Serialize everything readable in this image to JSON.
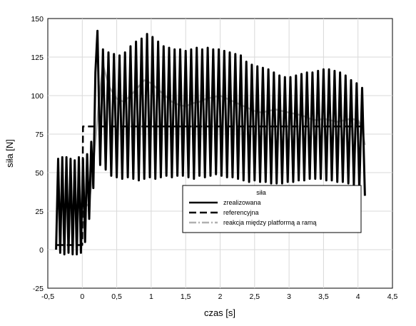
{
  "chart_data": {
    "type": "line",
    "title": "",
    "xlabel": "czas [s]",
    "ylabel": "siła [N]",
    "xlim": [
      -0.5,
      4.5
    ],
    "ylim": [
      -25,
      150
    ],
    "xticks": [
      "-0,5",
      "0",
      "0,5",
      "1",
      "1,5",
      "2",
      "2,5",
      "3",
      "3,5",
      "4",
      "4,5"
    ],
    "yticks": [
      "-25",
      "0",
      "25",
      "50",
      "75",
      "100",
      "125",
      "150"
    ],
    "grid": true,
    "legend": {
      "title": "siła",
      "placement": "center-right"
    },
    "series": [
      {
        "name": "zrealizowana",
        "color": "#000000",
        "style": "solid",
        "x": [
          -0.38,
          -0.35,
          -0.32,
          -0.29,
          -0.26,
          -0.23,
          -0.2,
          -0.17,
          -0.14,
          -0.11,
          -0.08,
          -0.05,
          -0.02,
          0.01,
          0.04,
          0.07,
          0.1,
          0.13,
          0.16,
          0.19,
          0.22,
          0.26,
          0.3,
          0.34,
          0.38,
          0.42,
          0.46,
          0.5,
          0.54,
          0.58,
          0.62,
          0.66,
          0.7,
          0.74,
          0.78,
          0.82,
          0.86,
          0.9,
          0.94,
          0.98,
          1.02,
          1.06,
          1.1,
          1.14,
          1.18,
          1.22,
          1.26,
          1.3,
          1.34,
          1.38,
          1.42,
          1.46,
          1.5,
          1.54,
          1.58,
          1.62,
          1.66,
          1.7,
          1.74,
          1.78,
          1.82,
          1.86,
          1.9,
          1.94,
          1.98,
          2.02,
          2.06,
          2.1,
          2.14,
          2.18,
          2.22,
          2.26,
          2.3,
          2.34,
          2.38,
          2.42,
          2.46,
          2.5,
          2.54,
          2.58,
          2.62,
          2.66,
          2.7,
          2.74,
          2.78,
          2.82,
          2.86,
          2.9,
          2.94,
          2.98,
          3.02,
          3.06,
          3.1,
          3.14,
          3.18,
          3.22,
          3.26,
          3.3,
          3.34,
          3.38,
          3.42,
          3.46,
          3.5,
          3.54,
          3.58,
          3.62,
          3.66,
          3.7,
          3.74,
          3.78,
          3.82,
          3.86,
          3.9,
          3.94,
          3.98,
          4.02,
          4.06,
          4.1
        ],
        "y": [
          0,
          59,
          -2,
          60,
          -3,
          60,
          -2,
          59,
          -3,
          58,
          -3,
          60,
          -2,
          59,
          5,
          62,
          20,
          70,
          40,
          115,
          142,
          55,
          130,
          52,
          128,
          48,
          127,
          47,
          126,
          46,
          128,
          47,
          132,
          46,
          135,
          45,
          137,
          46,
          140,
          47,
          138,
          46,
          135,
          47,
          132,
          48,
          131,
          47,
          130,
          48,
          130,
          48,
          129,
          47,
          130,
          46,
          131,
          48,
          130,
          47,
          131,
          48,
          130,
          49,
          130,
          48,
          129,
          47,
          128,
          47,
          127,
          46,
          126,
          45,
          122,
          44,
          120,
          45,
          119,
          44,
          118,
          44,
          117,
          43,
          115,
          43,
          113,
          43,
          112,
          44,
          112,
          44,
          113,
          45,
          114,
          45,
          115,
          46,
          115,
          46,
          116,
          46,
          117,
          45,
          117,
          45,
          116,
          44,
          115,
          44,
          113,
          43,
          110,
          42,
          108,
          40,
          105,
          35
        ]
      },
      {
        "name": "referencyjna",
        "color": "#000000",
        "style": "dashed",
        "x": [
          -0.38,
          0.0,
          0.01,
          0.05,
          0.1,
          0.5,
          1.0,
          1.5,
          2.0,
          2.5,
          3.0,
          3.5,
          4.0,
          4.1
        ],
        "y": [
          3,
          3,
          80,
          80,
          80,
          80,
          80,
          80,
          80,
          80,
          80,
          80,
          80,
          80
        ]
      },
      {
        "name": "reakcja między platformą a ramą",
        "color": "#b0b0b0",
        "style": "solid",
        "x": [
          -0.38,
          -0.3,
          -0.2,
          -0.1,
          0.0,
          0.05,
          0.1,
          0.15,
          0.2,
          0.25,
          0.3,
          0.35,
          0.4,
          0.5,
          0.6,
          0.7,
          0.8,
          0.9,
          1.0,
          1.1,
          1.2,
          1.3,
          1.4,
          1.5,
          1.6,
          1.7,
          1.8,
          1.9,
          2.0,
          2.1,
          2.2,
          2.3,
          2.4,
          2.5,
          2.6,
          2.7,
          2.8,
          2.9,
          3.0,
          3.1,
          3.2,
          3.3,
          3.4,
          3.5,
          3.6,
          3.7,
          3.8,
          3.9,
          4.0,
          4.05,
          4.1
        ],
        "y": [
          27,
          26,
          28,
          27,
          27,
          28,
          30,
          50,
          75,
          100,
          120,
          112,
          105,
          98,
          96,
          100,
          105,
          110,
          108,
          104,
          100,
          96,
          94,
          93,
          95,
          96,
          98,
          99,
          100,
          98,
          96,
          94,
          92,
          90,
          89,
          90,
          91,
          90,
          89,
          88,
          87,
          85,
          84,
          85,
          84,
          83,
          84,
          85,
          84,
          80,
          68
        ]
      }
    ]
  }
}
